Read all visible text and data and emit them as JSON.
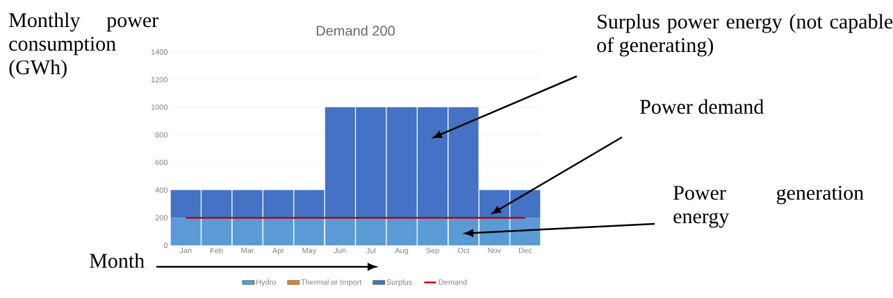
{
  "chart_data": {
    "type": "bar",
    "title": "Demand 200",
    "xlabel": "Month",
    "ylabel": "Monthly power consumption (GWh)",
    "categories": [
      "Jan",
      "Feb",
      "Mar",
      "Apr",
      "May",
      "Jun",
      "Jul",
      "Aug",
      "Sep",
      "Oct",
      "Nov",
      "Dec"
    ],
    "series": [
      {
        "name": "Hydro",
        "color": "#5b9bd5",
        "values": [
          200,
          200,
          200,
          200,
          200,
          200,
          200,
          200,
          200,
          200,
          200,
          200
        ]
      },
      {
        "name": "Thermal or Import",
        "color": "#ed7d31",
        "values": [
          0,
          0,
          0,
          0,
          0,
          0,
          0,
          0,
          0,
          0,
          0,
          0
        ]
      },
      {
        "name": "Surplus",
        "color": "#4472c4",
        "values": [
          200,
          200,
          200,
          200,
          200,
          800,
          800,
          800,
          800,
          800,
          200,
          200
        ]
      },
      {
        "name": "Demand",
        "type": "line",
        "color": "#c00000",
        "values": [
          200,
          200,
          200,
          200,
          200,
          200,
          200,
          200,
          200,
          200,
          200,
          200
        ]
      }
    ],
    "stacked": true,
    "ylim": [
      0,
      1400
    ],
    "yticks": [
      0,
      200,
      400,
      600,
      800,
      1000,
      1200,
      1400
    ],
    "grid": "y",
    "legend": "bottom",
    "annotations": [
      "Surplus power energy (not capable of generating)",
      "Power demand",
      "Power generation energy"
    ]
  }
}
